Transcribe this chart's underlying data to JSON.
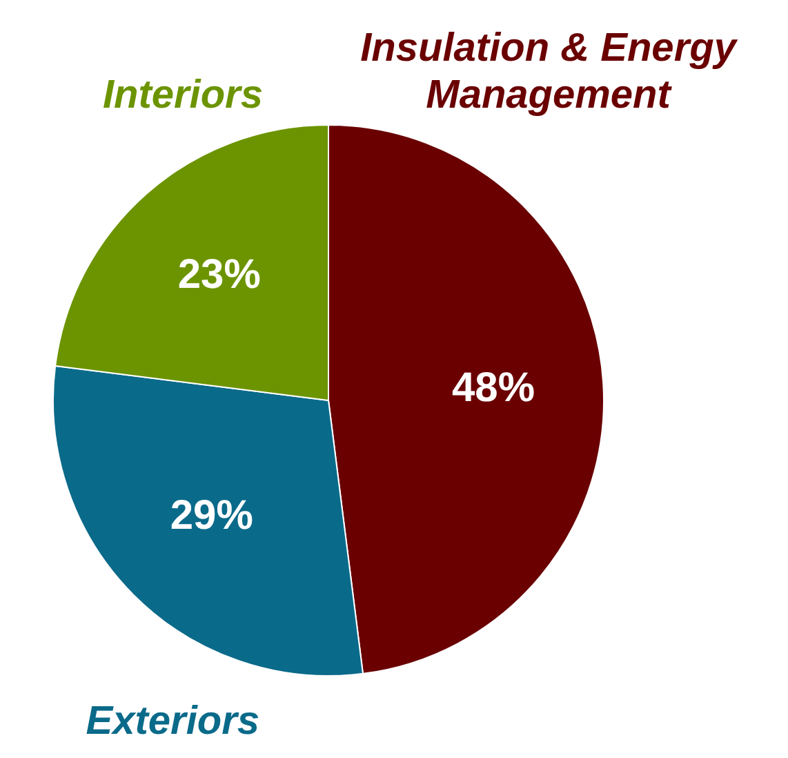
{
  "chart_data": {
    "type": "pie",
    "categories": [
      "Insulation & Energy Management",
      "Exteriors",
      "Interiors"
    ],
    "values": [
      48,
      29,
      23
    ],
    "colors": [
      "#6a0000",
      "#0a6a8a",
      "#6c9400"
    ],
    "value_labels": [
      "48%",
      "29%",
      "23%"
    ],
    "legend": false
  }
}
